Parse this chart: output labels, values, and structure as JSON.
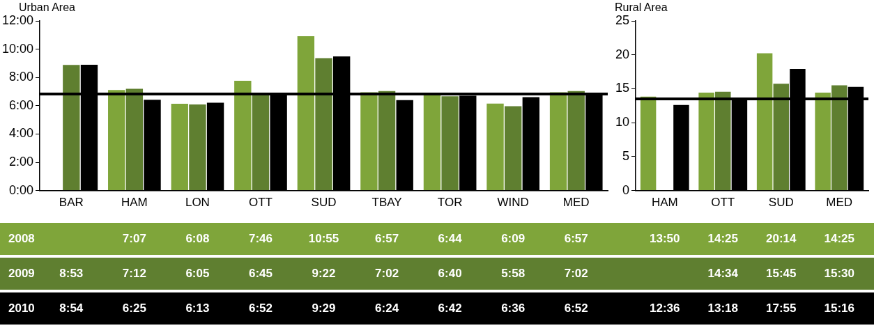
{
  "chart_data": [
    {
      "type": "bar",
      "ylabel": "Urban Area",
      "categories": [
        "BAR",
        "HAM",
        "LON",
        "OTT",
        "SUD",
        "TBAY",
        "TOR",
        "WIND",
        "MED"
      ],
      "ylim": [
        0,
        12
      ],
      "yticks": [
        {
          "value": 0,
          "label": "0:00"
        },
        {
          "value": 2,
          "label": "2:00"
        },
        {
          "value": 4,
          "label": "4:00"
        },
        {
          "value": 6,
          "label": "6:00"
        },
        {
          "value": 8,
          "label": "8:00"
        },
        {
          "value": 10,
          "label": "10:00"
        },
        {
          "value": 12,
          "label": "12:00"
        }
      ],
      "series": [
        {
          "name": "2008",
          "color": "#7fa53a",
          "values": [
            null,
            7.117,
            6.133,
            7.767,
            10.917,
            6.95,
            6.733,
            6.15,
            6.95
          ],
          "value_labels": [
            null,
            "7:07",
            "6:08",
            "7:46",
            "10:55",
            "6:57",
            "6:44",
            "6:09",
            "6:57"
          ]
        },
        {
          "name": "2009",
          "color": "#5f7f30",
          "values": [
            8.883,
            7.2,
            6.083,
            6.75,
            9.367,
            7.033,
            6.667,
            5.967,
            7.033
          ],
          "value_labels": [
            "8:53",
            "7:12",
            "6:05",
            "6:45",
            "9:22",
            "7:02",
            "6:40",
            "5:58",
            "7:02"
          ]
        },
        {
          "name": "2010",
          "color": "#000000",
          "values": [
            8.9,
            6.417,
            6.217,
            6.867,
            9.483,
            6.4,
            6.7,
            6.6,
            6.867
          ],
          "value_labels": [
            "8:54",
            "6:25",
            "6:13",
            "6:52",
            "9:29",
            "6:24",
            "6:42",
            "6:36",
            "6:52"
          ]
        }
      ],
      "ref_lines": [
        {
          "axis": "y",
          "value": 6.83,
          "color": "#000000"
        }
      ]
    },
    {
      "type": "bar",
      "ylabel": "Rural Area",
      "categories": [
        "HAM",
        "OTT",
        "SUD",
        "MED"
      ],
      "ylim": [
        0,
        25
      ],
      "yticks": [
        0,
        5,
        10,
        15,
        20,
        25
      ],
      "series": [
        {
          "color": "#7fa53a",
          "values": [
            13.833,
            14.417,
            20.233,
            14.417
          ],
          "value_labels": [
            "13:50",
            "14:25",
            "20:14",
            "14:25"
          ]
        },
        {
          "color": "#5f7f30",
          "values": [
            null,
            14.567,
            15.75,
            15.5
          ],
          "value_labels": [
            null,
            "14:34",
            "15:45",
            "15:30"
          ]
        },
        {
          "color": "#000000",
          "values": [
            12.6,
            13.3,
            17.917,
            15.267
          ],
          "value_labels": [
            "12:36",
            "13:18",
            "17:55",
            "15:16"
          ]
        }
      ],
      "ref_lines": [
        {
          "axis": "y",
          "value": 13.5,
          "color": "#000000"
        }
      ]
    }
  ]
}
